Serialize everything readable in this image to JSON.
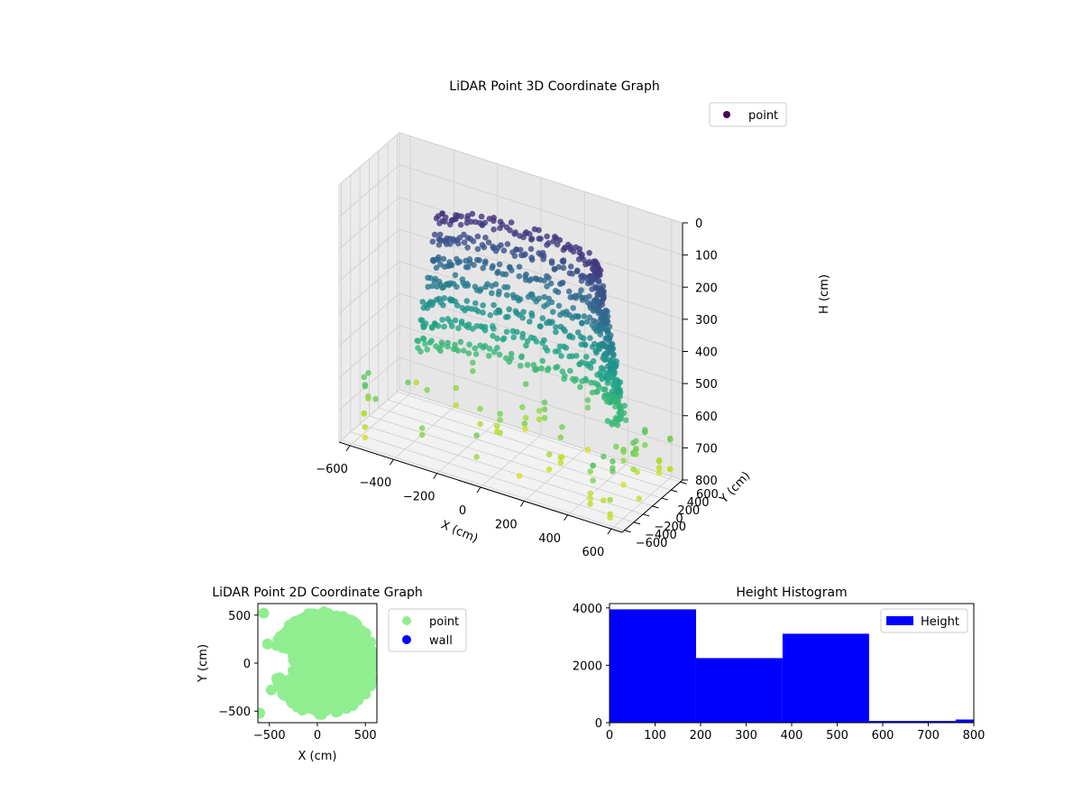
{
  "chart_data": [
    {
      "type": "scatter",
      "title": "LiDAR Point 3D Coordinate Graph",
      "xlabel": "X (cm)",
      "ylabel": "Y (cm)",
      "zlabel": "H (cm)",
      "xlim": [
        -650,
        650
      ],
      "ylim": [
        -650,
        650
      ],
      "zlim": [
        0,
        800
      ],
      "z_inverted": true,
      "x_ticks": [
        "−600",
        "−400",
        "−200",
        "0",
        "200",
        "400",
        "600"
      ],
      "y_ticks": [
        "−600",
        "−400",
        "−200",
        "0",
        "200",
        "400",
        "600"
      ],
      "z_ticks": [
        "0",
        "100",
        "200",
        "300",
        "400",
        "500",
        "600",
        "700",
        "800"
      ],
      "colormap": "viridis",
      "grid": true,
      "legend": {
        "position": "top-right",
        "entries": [
          {
            "label": "point",
            "color": "#440154"
          }
        ]
      },
      "series": [
        {
          "name": "point",
          "description_shape": "dense ring of points r≈350-520 cm at heights 100-600 cm plus sparse vertical columns up to 800 cm"
        }
      ]
    },
    {
      "type": "scatter",
      "title": "LiDAR Point 2D Coordinate Graph",
      "xlabel": "X (cm)",
      "ylabel": "Y (cm)",
      "xlim": [
        -620,
        620
      ],
      "ylim": [
        -620,
        620
      ],
      "x_ticks": [
        "−500",
        "0",
        "500"
      ],
      "y_ticks": [
        "−500",
        "0",
        "500"
      ],
      "legend": {
        "position": "outside-right",
        "entries": [
          {
            "label": "point",
            "color": "#90ee90"
          },
          {
            "label": "wall",
            "color": "#0000ff"
          }
        ]
      },
      "series": [
        {
          "name": "point",
          "color": "#90ee90"
        },
        {
          "name": "wall",
          "color": "#0000ff"
        }
      ]
    },
    {
      "type": "bar",
      "title": "Height Histogram",
      "xlim": [
        0,
        800
      ],
      "ylim": [
        0,
        4150
      ],
      "x_ticks": [
        "0",
        "100",
        "200",
        "300",
        "400",
        "500",
        "600",
        "700",
        "800"
      ],
      "y_ticks": [
        "0",
        "2000",
        "4000"
      ],
      "bin_edges": [
        0,
        190,
        380,
        570,
        760,
        800
      ],
      "values": [
        3950,
        2250,
        3100,
        60,
        110
      ],
      "color": "#0000ff",
      "legend": {
        "position": "top-right",
        "entries": [
          {
            "label": "Height",
            "color": "#0000ff"
          }
        ]
      }
    }
  ]
}
